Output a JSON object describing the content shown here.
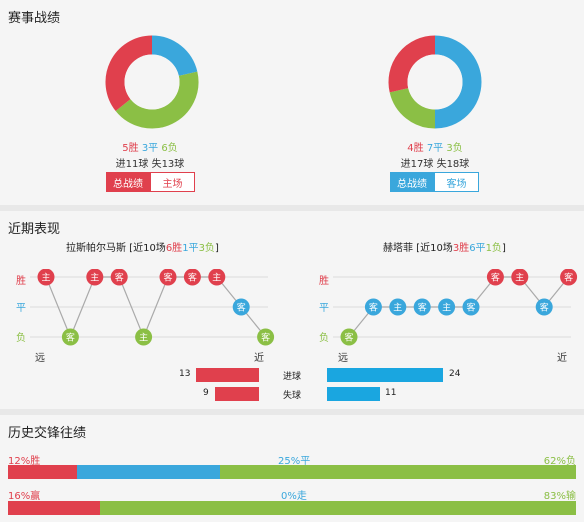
{
  "sections": {
    "record_title": "赛事战绩",
    "recent_title": "近期表现",
    "history_title": "历史交锋往绩"
  },
  "colors": {
    "win": "#e0404d",
    "draw": "#3aa7dc",
    "loss": "#8bbf45"
  },
  "left_team": {
    "record": {
      "win_text": "5胜",
      "draw_text": "3平",
      "loss_text": "6负",
      "goals_line": "进11球 失13球",
      "wins": 5,
      "draws": 3,
      "losses": 6
    },
    "tabs": {
      "overall": "总战绩",
      "venue": "主场"
    },
    "recent_header": {
      "name": "拉斯帕尔马斯",
      "prefix": " [近10场",
      "wins": "6胜",
      "draws": "1平",
      "losses": "3负",
      "suffix": "]"
    },
    "recent_results": [
      "W",
      "L",
      "W",
      "W",
      "L",
      "W",
      "W",
      "W",
      "D",
      "L"
    ],
    "recent_venues": [
      "主",
      "客",
      "主",
      "客",
      "主",
      "客",
      "客",
      "主",
      "客",
      "客"
    ],
    "goals_for": "13",
    "goals_against": "9",
    "goals_for_value": 13,
    "goals_against_value": 9
  },
  "right_team": {
    "record": {
      "win_text": "4胜",
      "draw_text": "7平",
      "loss_text": "3负",
      "goals_line": "进17球 失18球",
      "wins": 4,
      "draws": 7,
      "losses": 3
    },
    "tabs": {
      "overall": "总战绩",
      "venue": "客场"
    },
    "recent_header": {
      "name": "赫塔菲",
      "prefix": " [近10场",
      "wins": "3胜",
      "draws": "6平",
      "losses": "1负",
      "suffix": "]"
    },
    "recent_results": [
      "L",
      "D",
      "D",
      "D",
      "D",
      "D",
      "W",
      "W",
      "D",
      "W"
    ],
    "recent_venues": [
      "客",
      "客",
      "主",
      "客",
      "主",
      "客",
      "客",
      "主",
      "客",
      "客"
    ],
    "goals_for": "24",
    "goals_against": "11",
    "goals_for_value": 24,
    "goals_against_value": 11
  },
  "recent_axis": {
    "win": "胜",
    "draw": "平",
    "loss": "负",
    "far": "远",
    "near": "近"
  },
  "goal_labels": {
    "scored": "进球",
    "conceded": "失球"
  },
  "history": {
    "row1": {
      "left": "12%胜",
      "mid": "25%平",
      "right": "62%负",
      "segments": [
        12,
        25,
        62
      ]
    },
    "row2": {
      "left": "16%赢",
      "mid": "0%走",
      "right": "83%输",
      "segments": [
        16,
        0,
        83
      ]
    }
  }
}
